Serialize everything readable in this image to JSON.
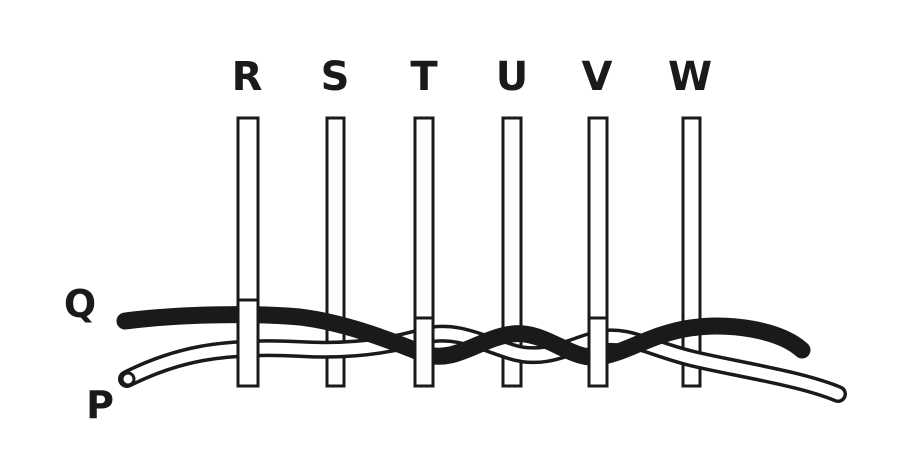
{
  "warp_labels": [
    "R",
    "S",
    "T",
    "U",
    "V",
    "W"
  ],
  "weft_labels": {
    "black_strand": "Q",
    "white_strand": "P"
  },
  "colors": {
    "ink": "#1a1a1a",
    "paper": "#ffffff"
  }
}
